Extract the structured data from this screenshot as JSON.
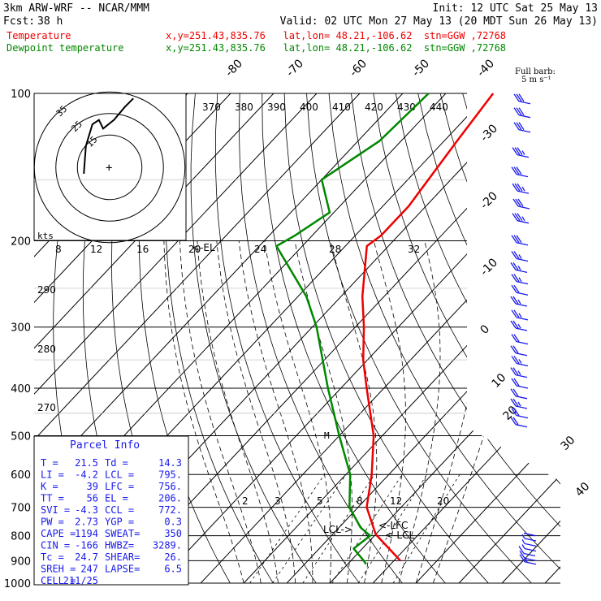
{
  "header": {
    "model": "3km ARW-WRF -- NCAR/MMM",
    "init": "Init: 12 UTC Sat 25 May 13",
    "fcst_label": "Fcst:",
    "fcst_value": "38 h",
    "valid": "Valid: 02 UTC Mon 27 May 13 (20 MDT Sun 26 May 13)",
    "temp_label": "Temperature",
    "temp_info": "x,y=251.43,835.76   lat,lon= 48.21,-106.62  stn=GGW ,72768",
    "dew_label": "Dewpoint temperature",
    "dew_info": "x,y=251.43,835.76   lat,lon= 48.21,-106.62  stn=GGW ,72768",
    "temp_color": "#ee0000",
    "dew_color": "#008800"
  },
  "wind_legend": {
    "title": "Full barb:",
    "value": "5 m s⁻¹"
  },
  "parcel": {
    "title": "Parcel Info",
    "rows": [
      [
        "T  =",
        "21.5",
        "Td =",
        "14.3"
      ],
      [
        "LI =",
        "-4.2",
        "LCL =",
        "795."
      ],
      [
        "K  =",
        "39",
        "LFC =",
        "756."
      ],
      [
        "TT =",
        "56",
        "EL  =",
        "206."
      ],
      [
        "SVI =",
        "-4.3",
        "CCL =",
        "772."
      ],
      [
        "PW =",
        "2.73",
        "YGP =",
        "0.3"
      ],
      [
        "CAPE =",
        "1194",
        "SWEAT=",
        "350"
      ],
      [
        "CIN =",
        "-166",
        "HWBZ=",
        "3289."
      ],
      [
        "Tc =",
        "24.7",
        "SHEAR=",
        "26."
      ],
      [
        "SREH =",
        "247",
        "LAPSE=",
        "6.5"
      ],
      [
        "CELL =",
        "211/25",
        "",
        ""
      ]
    ]
  },
  "hodograph": {
    "units": "kts",
    "ring_labels": [
      "15",
      "25",
      "35"
    ]
  },
  "chart_data": {
    "type": "line",
    "title": "",
    "ylabel": "",
    "pressure_labels": [
      "100",
      "200",
      "300",
      "400",
      "500",
      "600",
      "700",
      "800",
      "900",
      "1000"
    ],
    "temp_tick_labels": [
      "-80",
      "-70",
      "-60",
      "-50",
      "-40",
      "-30",
      "-20",
      "-10",
      "0",
      "10",
      "20",
      "30",
      "40"
    ],
    "theta_labels": [
      "370",
      "380",
      "390",
      "400",
      "410",
      "420",
      "430",
      "440"
    ],
    "theta_side_labels": [
      "290",
      "280",
      "270"
    ],
    "mixing_labels_top": [
      "8",
      "12",
      "16",
      "20",
      "24",
      "28",
      "32"
    ],
    "mixing_labels_low": [
      "2",
      "3",
      "5",
      "8",
      "12",
      "20"
    ],
    "markers": {
      "el": "<-EL",
      "lfc": "<-LFC",
      "lcl": "<-LCL",
      "lcl2": "LCL->"
    },
    "series": [
      {
        "name": "Temperature",
        "color": "#ee0000",
        "values": [
          [
            100,
            -59
          ],
          [
            125,
            -57
          ],
          [
            170,
            -54
          ],
          [
            195,
            -54
          ],
          [
            205,
            -55
          ],
          [
            215,
            -53
          ],
          [
            260,
            -45
          ],
          [
            300,
            -38
          ],
          [
            350,
            -31
          ],
          [
            400,
            -24
          ],
          [
            500,
            -12
          ],
          [
            600,
            -4
          ],
          [
            700,
            2
          ],
          [
            795,
            10
          ],
          [
            900,
            21.5
          ]
        ]
      },
      {
        "name": "Dewpoint temperature",
        "color": "#008800",
        "values": [
          [
            100,
            -74
          ],
          [
            125,
            -75
          ],
          [
            150,
            -80
          ],
          [
            175,
            -71
          ],
          [
            195,
            -74
          ],
          [
            205,
            -76
          ],
          [
            260,
            -58
          ],
          [
            300,
            -49
          ],
          [
            400,
            -33
          ],
          [
            500,
            -20
          ],
          [
            600,
            -9
          ],
          [
            700,
            -2
          ],
          [
            770,
            5
          ],
          [
            800,
            9
          ],
          [
            850,
            8
          ],
          [
            900,
            13
          ],
          [
            915,
            14.3
          ]
        ]
      }
    ],
    "hodograph_trace_kts": [
      [
        -12,
        -3
      ],
      [
        -11,
        10
      ],
      [
        -8,
        20
      ],
      [
        -5,
        22
      ],
      [
        -3,
        18
      ],
      [
        2,
        22
      ],
      [
        7,
        28
      ],
      [
        11,
        32
      ]
    ],
    "winds": [
      [
        105,
        5,
        28
      ],
      [
        112,
        5,
        30
      ],
      [
        120,
        5,
        32
      ],
      [
        135,
        3,
        34
      ],
      [
        148,
        2,
        32
      ],
      [
        160,
        3,
        33
      ],
      [
        172,
        4,
        30
      ],
      [
        184,
        3,
        33
      ],
      [
        204,
        2,
        28
      ],
      [
        220,
        2,
        25
      ],
      [
        232,
        1,
        24
      ],
      [
        245,
        2,
        24
      ],
      [
        258,
        2,
        21
      ],
      [
        272,
        1,
        23
      ],
      [
        290,
        2,
        24
      ],
      [
        305,
        1,
        24
      ],
      [
        325,
        2,
        22
      ],
      [
        343,
        1,
        21
      ],
      [
        360,
        2,
        23
      ],
      [
        380,
        1,
        23
      ],
      [
        400,
        2,
        20
      ],
      [
        420,
        1,
        20
      ],
      [
        440,
        1,
        23
      ],
      [
        460,
        2,
        20
      ],
      [
        480,
        1,
        21
      ],
      [
        800,
        1,
        2
      ],
      [
        820,
        2,
        3
      ],
      [
        840,
        2,
        4
      ],
      [
        860,
        2,
        6
      ],
      [
        880,
        1,
        8
      ],
      [
        900,
        2,
        10
      ],
      [
        915,
        2,
        14
      ]
    ]
  }
}
